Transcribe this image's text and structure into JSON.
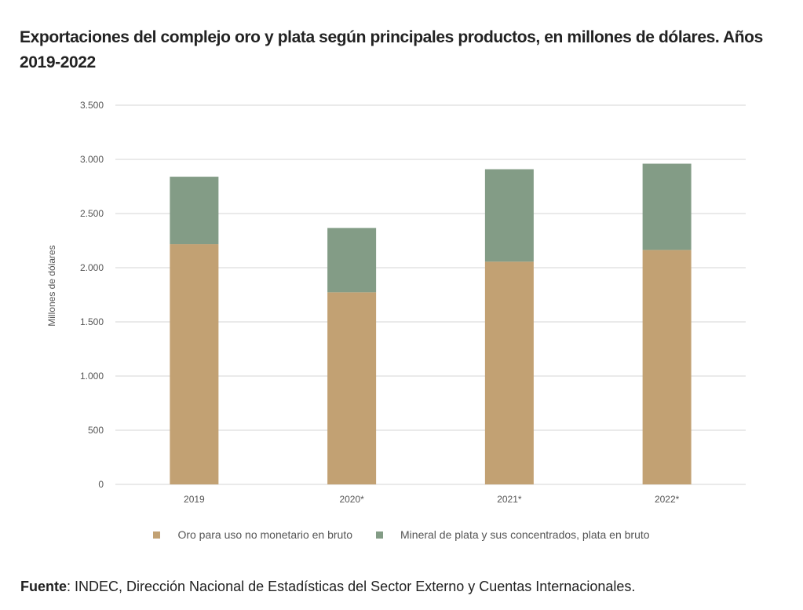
{
  "chart_data": {
    "type": "bar",
    "stacked": true,
    "title": "Exportaciones del complejo oro y plata según principales productos, en millones de dólares. Años 2019-2022",
    "ylabel": "Millones de dólares",
    "xlabel": "",
    "ylim": [
      0,
      3500
    ],
    "yticks": [
      0,
      500,
      1000,
      1500,
      2000,
      2500,
      3000,
      3500
    ],
    "ytick_labels": [
      "0",
      "500",
      "1.000",
      "1.500",
      "2.000",
      "2.500",
      "3.000",
      "3.500"
    ],
    "categories": [
      "2019",
      "2020*",
      "2021*",
      "2022*"
    ],
    "grid": true,
    "legend_position": "bottom",
    "series": [
      {
        "name": "Oro para uso no monetario en bruto",
        "color": "#c2a173",
        "values": [
          2217,
          1773,
          2056,
          2164
        ]
      },
      {
        "name": "Mineral de plata y sus concentrados, plata en bruto",
        "color": "#839c86",
        "values": [
          623,
          594,
          853,
          796
        ]
      }
    ]
  },
  "source": {
    "label": "Fuente",
    "text": ": INDEC, Dirección Nacional de Estadísticas del Sector Externo y Cuentas Internacionales."
  }
}
